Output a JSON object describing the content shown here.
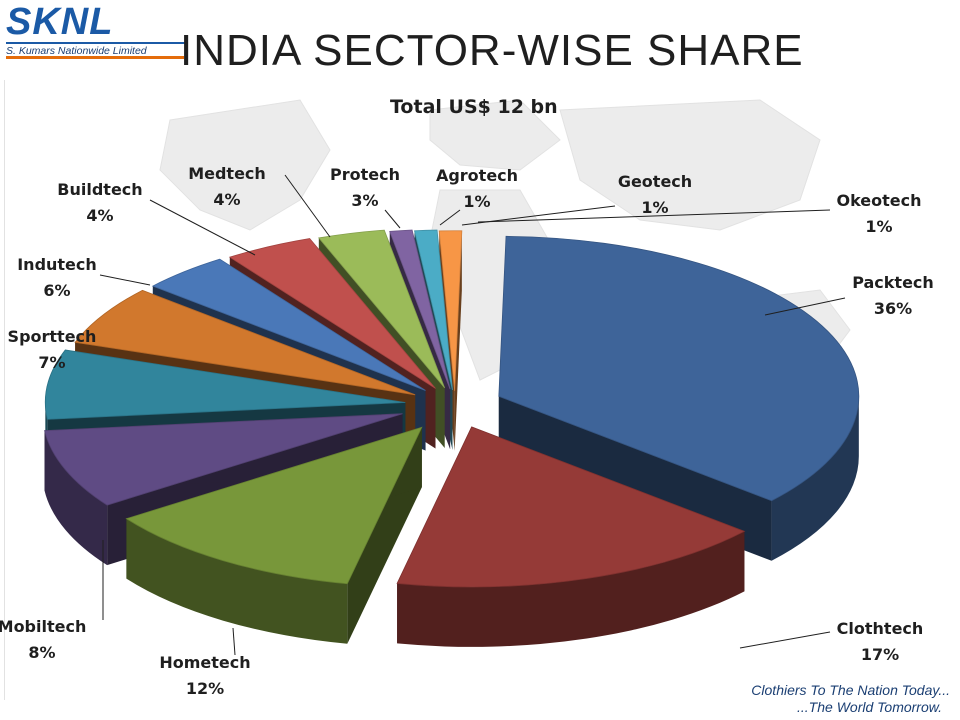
{
  "header": {
    "logo_text": "SKNL",
    "logo_subtitle": "S. Kumars Nationwide Limited",
    "page_title": "INDIA SECTOR-WISE SHARE"
  },
  "footer": {
    "tagline_line1": "Clothiers To The Nation Today...",
    "tagline_line2": "...The World Tomorrow."
  },
  "chart_data": {
    "type": "pie",
    "title": "Total US$ 12 bn",
    "three_d": true,
    "exploded": true,
    "slices": [
      {
        "label": "Packtech",
        "pct_label": "36%",
        "value": 36,
        "color": "#3e6499"
      },
      {
        "label": "Clothtech",
        "pct_label": "17%",
        "value": 17,
        "color": "#953a37"
      },
      {
        "label": "Hometech",
        "pct_label": "12%",
        "value": 12,
        "color": "#78973a"
      },
      {
        "label": "Mobiltech",
        "pct_label": "8%",
        "value": 8,
        "color": "#5f4b84"
      },
      {
        "label": "Sporttech",
        "pct_label": "7%",
        "value": 7,
        "color": "#31859c"
      },
      {
        "label": "Indutech",
        "pct_label": "6%",
        "value": 6,
        "color": "#d1782d"
      },
      {
        "label": "Buildtech",
        "pct_label": "4%",
        "value": 4,
        "color": "#4a78b8"
      },
      {
        "label": "Medtech",
        "pct_label": "4%",
        "value": 4,
        "color": "#c0504d"
      },
      {
        "label": "Protech",
        "pct_label": "3%",
        "value": 3,
        "color": "#9bbb59"
      },
      {
        "label": "Agrotech",
        "pct_label": "1%",
        "value": 1,
        "color": "#8064a2"
      },
      {
        "label": "Geotech",
        "pct_label": "1%",
        "value": 1,
        "color": "#4bacc6"
      },
      {
        "label": "Okeotech",
        "pct_label": "1%",
        "value": 1,
        "color": "#f79646"
      }
    ]
  }
}
